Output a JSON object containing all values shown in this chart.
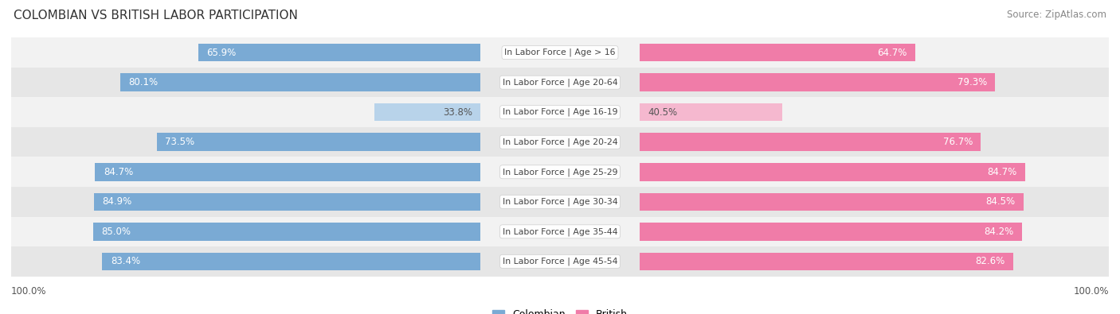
{
  "title": "COLOMBIAN VS BRITISH LABOR PARTICIPATION",
  "source": "Source: ZipAtlas.com",
  "categories": [
    "In Labor Force | Age > 16",
    "In Labor Force | Age 20-64",
    "In Labor Force | Age 16-19",
    "In Labor Force | Age 20-24",
    "In Labor Force | Age 25-29",
    "In Labor Force | Age 30-34",
    "In Labor Force | Age 35-44",
    "In Labor Force | Age 45-54"
  ],
  "colombian": [
    65.9,
    80.1,
    33.8,
    73.5,
    84.7,
    84.9,
    85.0,
    83.4
  ],
  "british": [
    64.7,
    79.3,
    40.5,
    76.7,
    84.7,
    84.5,
    84.2,
    82.6
  ],
  "colombian_color": "#7aaad4",
  "colombian_color_light": "#b8d3ea",
  "british_color": "#f07ca8",
  "british_color_light": "#f5b8cf",
  "row_bg_light": "#f2f2f2",
  "row_bg_dark": "#e6e6e6",
  "label_color_white": "#ffffff",
  "label_color_dark": "#555555",
  "center_label_color": "#444444",
  "max_val": 100.0,
  "bar_height": 0.6,
  "legend_labels": [
    "Colombian",
    "British"
  ],
  "legend_colors": [
    "#7aaad4",
    "#f07ca8"
  ],
  "title_fontsize": 11,
  "source_fontsize": 8.5,
  "bar_label_fontsize": 8.5,
  "category_fontsize": 7.8,
  "axis_label_fontsize": 8.5,
  "label_half": 14.5
}
